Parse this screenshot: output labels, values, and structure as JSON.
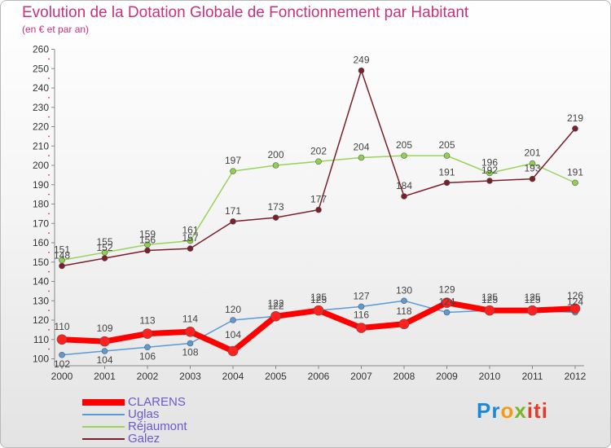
{
  "title": "Evolution de la Dotation Globale de Fonctionnement par Habitant",
  "subtitle": "(en € et par an)",
  "logo": {
    "text": "Proxiti"
  },
  "chart_data": {
    "type": "line",
    "title": "Evolution de la Dotation Globale de Fonctionnement par Habitant",
    "ylabel": "(en € et par an)",
    "xlabel": "",
    "categories": [
      "2000",
      "2001",
      "2002",
      "2003",
      "2004",
      "2005",
      "2006",
      "2007",
      "2008",
      "2009",
      "2010",
      "2011",
      "2012"
    ],
    "ylim": [
      100,
      260
    ],
    "yticks": [
      100,
      110,
      120,
      130,
      140,
      150,
      160,
      170,
      180,
      190,
      200,
      210,
      220,
      230,
      240,
      250,
      260
    ],
    "grid": false,
    "legend_position": "bottom-left",
    "series": [
      {
        "name": "CLARENS",
        "color": "#ff0000",
        "values": [
          110,
          109,
          113,
          114,
          104,
          122,
          125,
          116,
          118,
          129,
          125,
          125,
          126
        ]
      },
      {
        "name": "Uglas",
        "color": "#5b9bd5",
        "values": [
          102,
          104,
          106,
          108,
          120,
          122,
          125,
          127,
          130,
          124,
          125,
          125,
          124
        ]
      },
      {
        "name": "Réjaumont",
        "color": "#9ad35c",
        "values": [
          151,
          155,
          159,
          161,
          197,
          200,
          202,
          204,
          205,
          205,
          196,
          201,
          191
        ]
      },
      {
        "name": "Galez",
        "color": "#7a1f2b",
        "values": [
          148,
          152,
          156,
          157,
          171,
          173,
          177,
          249,
          184,
          191,
          192,
          193,
          219
        ]
      }
    ]
  }
}
